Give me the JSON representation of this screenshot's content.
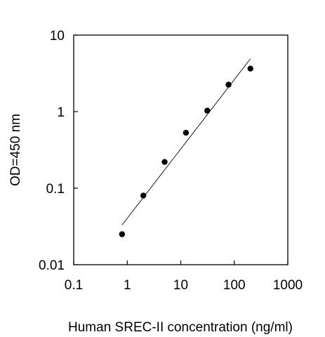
{
  "chart_data": {
    "type": "scatter",
    "title": "",
    "xlabel": "Human SREC-II concentration (ng/ml)",
    "ylabel": "OD=450 nm",
    "x_scale": "log",
    "y_scale": "log",
    "xlim": [
      0.1,
      1000
    ],
    "ylim": [
      0.01,
      10
    ],
    "x_ticks": [
      "0.1",
      "1",
      "10",
      "100",
      "1000"
    ],
    "y_ticks": [
      "0.01",
      "0.1",
      "1",
      "10"
    ],
    "grid": false,
    "legend": "none",
    "series": [
      {
        "points": [
          {
            "x": 0.8,
            "y": 0.025
          },
          {
            "x": 2,
            "y": 0.08
          },
          {
            "x": 5,
            "y": 0.22
          },
          {
            "x": 12.5,
            "y": 0.53
          },
          {
            "x": 31.3,
            "y": 1.03
          },
          {
            "x": 78,
            "y": 2.25
          },
          {
            "x": 200,
            "y": 3.65
          }
        ],
        "color": "#000000"
      }
    ],
    "fit_line": {
      "x": [
        0.8,
        200
      ],
      "y": [
        0.033,
        4.9
      ],
      "color": "#000000"
    }
  }
}
